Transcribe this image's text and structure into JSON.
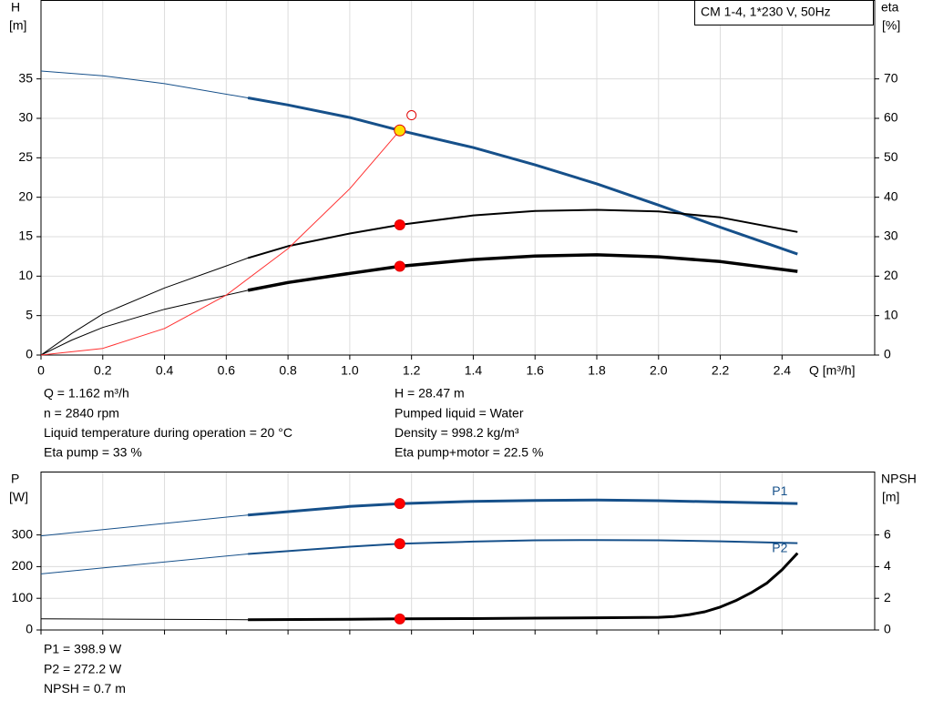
{
  "chart_data": [
    {
      "type": "line",
      "title": "CM 1-4, 1*230 V, 50Hz",
      "y_label": "H",
      "y_unit": "[m]",
      "y2_label": "eta",
      "y2_unit": "[%]",
      "x_label": "Q [m³/h]",
      "xlim": [
        0,
        2.7
      ],
      "xticks": [
        0,
        0.2,
        0.4,
        0.6,
        0.8,
        {
          "value": 1,
          "label": "1.0"
        },
        1.2,
        1.4,
        1.6,
        1.8,
        {
          "value": 2,
          "label": "2.0"
        },
        2.2,
        2.4
      ],
      "ylim": [
        0,
        45
      ],
      "yticks": [
        0,
        5,
        10,
        15,
        20,
        25,
        30,
        35
      ],
      "y2lim": [
        0,
        90
      ],
      "y2ticks": [
        0,
        10,
        20,
        30,
        40,
        50,
        60,
        70
      ],
      "grid": true,
      "series": [
        {
          "color": "#16508a",
          "width": 1,
          "x": [
            0,
            0.2,
            0.4,
            0.67
          ],
          "values": [
            36,
            35.4,
            34.4,
            32.6
          ]
        },
        {
          "color": "#16508a",
          "width": 3,
          "x": [
            0.67,
            0.8,
            1.0,
            1.162,
            1.4,
            1.6,
            1.8,
            2.0,
            2.2,
            2.45
          ],
          "values": [
            32.6,
            31.7,
            30.1,
            28.47,
            26.3,
            24.1,
            21.7,
            19.0,
            16.2,
            12.8
          ]
        },
        {
          "color": "#000000",
          "width": 1,
          "axis": "y2",
          "x": [
            0,
            0.1,
            0.2,
            0.4,
            0.6,
            0.67
          ],
          "values": [
            0,
            5.5,
            10.4,
            17,
            22.6,
            24.6
          ]
        },
        {
          "color": "#000000",
          "width": 2,
          "axis": "y2",
          "x": [
            0.67,
            0.8,
            1.0,
            1.162,
            1.4,
            1.6,
            1.8,
            2.0,
            2.2,
            2.45
          ],
          "values": [
            24.6,
            27.6,
            30.8,
            33,
            35.4,
            36.5,
            36.8,
            36.4,
            34.9,
            31.2
          ]
        },
        {
          "color": "#000000",
          "width": 1,
          "axis": "y2",
          "x": [
            0,
            0.1,
            0.2,
            0.4,
            0.67
          ],
          "values": [
            0,
            3.8,
            7,
            11.6,
            16.4
          ]
        },
        {
          "color": "#000000",
          "width": 3.5,
          "axis": "y2",
          "x": [
            0.67,
            0.8,
            1.0,
            1.162,
            1.4,
            1.6,
            1.8,
            2.0,
            2.2,
            2.45
          ],
          "values": [
            16.4,
            18.4,
            20.7,
            22.5,
            24.2,
            25.1,
            25.4,
            24.9,
            23.7,
            21.2
          ]
        },
        {
          "color": "#ff3030",
          "width": 1,
          "x": [
            0,
            0.2,
            0.4,
            0.6,
            0.8,
            1.0,
            1.162
          ],
          "values": [
            0,
            0.84,
            3.37,
            7.59,
            13.49,
            21.08,
            28.47
          ]
        }
      ],
      "points": [
        {
          "x": 1.2,
          "y": 30.4,
          "color": "#e00000",
          "fill": "#ffffff",
          "size": 5
        },
        {
          "x": 1.162,
          "y": 28.47,
          "color": "#e00000",
          "fill": "#ffe000",
          "size": 6
        },
        {
          "x": 1.162,
          "y": 33,
          "axis": "y2",
          "color": "#e00000",
          "fill": "#ff0000",
          "size": 5.5
        },
        {
          "x": 1.162,
          "y": 22.5,
          "axis": "y2",
          "color": "#e00000",
          "fill": "#ff0000",
          "size": 5.5
        }
      ],
      "notes": [
        [
          "Q = 1.162 m³/h",
          "n = 2840 rpm",
          "Liquid temperature during operation = 20 °C",
          "Eta pump = 33 %"
        ],
        [
          "H = 28.47 m",
          "Pumped liquid = Water",
          "Density = 998.2 kg/m³",
          "Eta pump+motor = 22.5 %"
        ]
      ]
    },
    {
      "type": "line",
      "y_label": "P",
      "y_unit": "[W]",
      "y2_label": "NPSH",
      "y2_unit": "[m]",
      "xlim": [
        0,
        2.7
      ],
      "xticks": [
        0,
        0.2,
        0.4,
        0.6,
        0.8,
        1,
        1.2,
        1.4,
        1.6,
        1.8,
        2,
        2.2,
        2.4
      ],
      "ylim": [
        0,
        500
      ],
      "yticks": [
        0,
        100,
        200,
        300
      ],
      "y2lim": [
        0,
        10
      ],
      "y2ticks": [
        0,
        2,
        4,
        6
      ],
      "grid": true,
      "series": [
        {
          "color": "#16508a",
          "width": 1,
          "x": [
            0,
            0.67
          ],
          "values": [
            297,
            363
          ]
        },
        {
          "name": "P1",
          "color": "#16508a",
          "width": 3,
          "x": [
            0.67,
            1.0,
            1.162,
            1.4,
            1.6,
            1.8,
            2.0,
            2.2,
            2.45
          ],
          "values": [
            363,
            390,
            398.9,
            406,
            409,
            410,
            408,
            404,
            399
          ]
        },
        {
          "color": "#16508a",
          "width": 1,
          "x": [
            0,
            0.67
          ],
          "values": [
            177,
            240
          ]
        },
        {
          "name": "P2",
          "color": "#16508a",
          "width": 2,
          "x": [
            0.67,
            1.0,
            1.162,
            1.4,
            1.6,
            1.8,
            2.0,
            2.2,
            2.45
          ],
          "values": [
            240,
            263,
            272.2,
            279,
            283,
            284,
            283,
            280,
            274
          ]
        },
        {
          "color": "#000000",
          "width": 1,
          "axis": "y2",
          "x": [
            0,
            0.67
          ],
          "values": [
            0.7,
            0.65
          ]
        },
        {
          "color": "#000000",
          "width": 3,
          "axis": "y2",
          "x": [
            0.67,
            1.0,
            1.162,
            1.4,
            1.6,
            1.8,
            2.0,
            2.05,
            2.1,
            2.15,
            2.2,
            2.25,
            2.3,
            2.35,
            2.4,
            2.45
          ],
          "values": [
            0.65,
            0.68,
            0.7,
            0.72,
            0.75,
            0.77,
            0.8,
            0.85,
            0.97,
            1.15,
            1.45,
            1.85,
            2.35,
            2.95,
            3.8,
            4.85
          ]
        }
      ],
      "points": [
        {
          "x": 1.162,
          "y": 398.9,
          "color": "#e00000",
          "fill": "#ff0000",
          "size": 5.5
        },
        {
          "x": 1.162,
          "y": 272.2,
          "color": "#e00000",
          "fill": "#ff0000",
          "size": 5.5
        },
        {
          "x": 1.162,
          "y": 0.7,
          "axis": "y2",
          "color": "#e00000",
          "fill": "#ff0000",
          "size": 5.5
        }
      ],
      "notes": [
        [
          "P1 = 398.9 W",
          "P2 = 272.2 W",
          "NPSH = 0.7 m"
        ]
      ]
    }
  ]
}
